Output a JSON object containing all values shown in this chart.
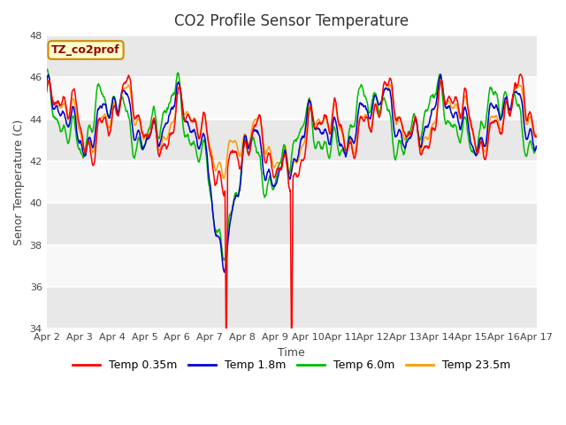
{
  "title": "CO2 Profile Sensor Temperature",
  "xlabel": "Time",
  "ylabel": "Senor Temperature (C)",
  "ylim": [
    34,
    48
  ],
  "yticks": [
    34,
    36,
    38,
    40,
    42,
    44,
    46,
    48
  ],
  "colors": {
    "red": "#ff0000",
    "blue": "#0000cc",
    "green": "#00bb00",
    "orange": "#ff9900"
  },
  "legend_labels": [
    "Temp 0.35m",
    "Temp 1.8m",
    "Temp 6.0m",
    "Temp 23.5m"
  ],
  "annotation_text": "TZ_co2prof",
  "annotation_bg": "#ffffcc",
  "annotation_border": "#cc8800",
  "bg_color": "#ffffff",
  "plot_bg": "#ffffff",
  "band_color1": "#e8e8e8",
  "band_color2": "#f8f8f8",
  "title_fontsize": 12,
  "axis_fontsize": 9,
  "tick_fontsize": 8,
  "legend_fontsize": 9
}
